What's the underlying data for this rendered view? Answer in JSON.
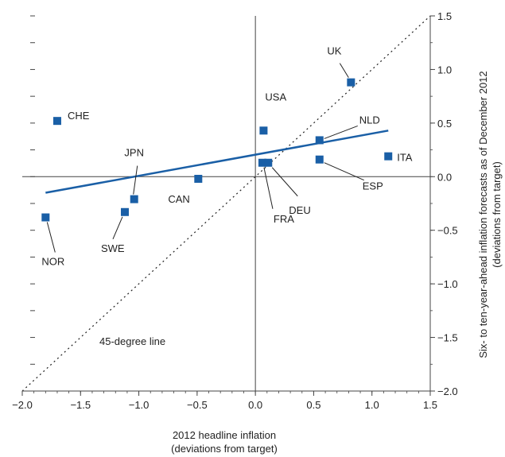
{
  "chart_data": {
    "type": "scatter",
    "xlabel_lines": [
      "2012 headline inflation",
      "(deviations from target)"
    ],
    "ylabel_lines": [
      "Six- to ten-year-ahead inflation forecasts as of December 2012",
      "(deviations from target)"
    ],
    "xlim": [
      -2.0,
      1.5
    ],
    "ylim": [
      -2.0,
      1.5
    ],
    "x_ticks": [
      -2.0,
      -1.5,
      -1.0,
      -0.5,
      0.0,
      0.5,
      1.0,
      1.5
    ],
    "x_tick_labels": [
      "−2.0",
      "−1.5",
      "−1.0",
      "−0.5",
      "0.0",
      "0.5",
      "1.0",
      "1.5"
    ],
    "y_ticks": [
      -2.0,
      -1.5,
      -1.0,
      -0.5,
      0.0,
      0.5,
      1.0,
      1.5
    ],
    "y_tick_labels": [
      "−2.0",
      "−1.5",
      "−1.0",
      "−0.5",
      "0.0",
      "0.5",
      "1.0",
      "1.5"
    ],
    "points": [
      {
        "label": "CHE",
        "x": -1.7,
        "y": 0.52
      },
      {
        "label": "NOR",
        "x": -1.8,
        "y": -0.38
      },
      {
        "label": "SWE",
        "x": -1.12,
        "y": -0.33
      },
      {
        "label": "JPN",
        "x": -1.04,
        "y": -0.21
      },
      {
        "label": "CAN",
        "x": -0.49,
        "y": -0.02
      },
      {
        "label": "USA",
        "x": 0.07,
        "y": 0.43
      },
      {
        "label": "FRA",
        "x": 0.06,
        "y": 0.13
      },
      {
        "label": "DEU",
        "x": 0.11,
        "y": 0.13
      },
      {
        "label": "UK",
        "x": 0.82,
        "y": 0.88
      },
      {
        "label": "NLD",
        "x": 0.55,
        "y": 0.34
      },
      {
        "label": "ESP",
        "x": 0.55,
        "y": 0.16
      },
      {
        "label": "ITA",
        "x": 1.14,
        "y": 0.19
      }
    ],
    "trend_line": {
      "x": [
        -1.8,
        1.14
      ],
      "y": [
        -0.15,
        0.43
      ]
    },
    "reference_line": {
      "label": "45-degree line",
      "x": [
        -2.0,
        1.5
      ],
      "y": [
        -2.0,
        1.5
      ]
    },
    "grid": false,
    "colors": {
      "marker": "#1a5fa6",
      "trend": "#1a5fa6",
      "reference": "#222222",
      "axis": "#444444"
    }
  }
}
